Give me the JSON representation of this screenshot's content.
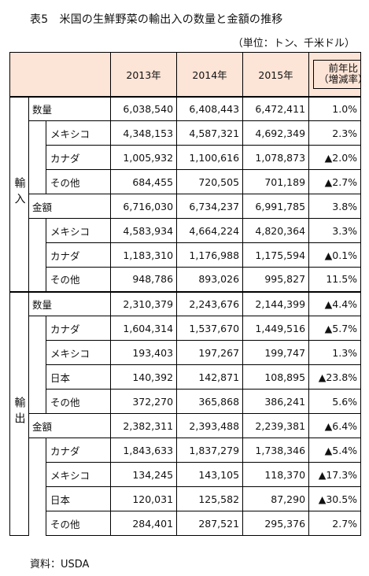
{
  "title": "表5　米国の生鮮野菜の輸出入の数量と金額の推移",
  "unit": "（単位：トン、千米ドル）",
  "headers": {
    "y2013": "2013年",
    "y2014": "2014年",
    "y2015": "2015年",
    "yoy_line1": "前年比",
    "yoy_line2": "（増減率）"
  },
  "import": {
    "label": "輸入",
    "quantity": {
      "label": "数量",
      "v2013": "6,038,540",
      "v2014": "6,408,443",
      "v2015": "6,472,411",
      "yoy": "1.0%",
      "rows": [
        {
          "label": "メキシコ",
          "v2013": "4,348,153",
          "v2014": "4,587,321",
          "v2015": "4,692,349",
          "yoy": "2.3%"
        },
        {
          "label": "カナダ",
          "v2013": "1,005,932",
          "v2014": "1,100,616",
          "v2015": "1,078,873",
          "yoy": "▲2.0%"
        },
        {
          "label": "その他",
          "v2013": "684,455",
          "v2014": "720,505",
          "v2015": "701,189",
          "yoy": "▲2.7%"
        }
      ]
    },
    "value": {
      "label": "金額",
      "v2013": "6,716,030",
      "v2014": "6,734,237",
      "v2015": "6,991,785",
      "yoy": "3.8%",
      "rows": [
        {
          "label": "メキシコ",
          "v2013": "4,583,934",
          "v2014": "4,664,224",
          "v2015": "4,820,364",
          "yoy": "3.3%"
        },
        {
          "label": "カナダ",
          "v2013": "1,183,310",
          "v2014": "1,176,988",
          "v2015": "1,175,594",
          "yoy": "▲0.1%"
        },
        {
          "label": "その他",
          "v2013": "948,786",
          "v2014": "893,026",
          "v2015": "995,827",
          "yoy": "11.5%"
        }
      ]
    }
  },
  "export": {
    "label": "輸出",
    "quantity": {
      "label": "数量",
      "v2013": "2,310,379",
      "v2014": "2,243,676",
      "v2015": "2,144,399",
      "yoy": "▲4.4%",
      "rows": [
        {
          "label": "カナダ",
          "v2013": "1,604,314",
          "v2014": "1,537,670",
          "v2015": "1,449,516",
          "yoy": "▲5.7%"
        },
        {
          "label": "メキシコ",
          "v2013": "193,403",
          "v2014": "197,267",
          "v2015": "199,747",
          "yoy": "1.3%"
        },
        {
          "label": "日本",
          "v2013": "140,392",
          "v2014": "142,871",
          "v2015": "108,895",
          "yoy": "▲23.8%"
        },
        {
          "label": "その他",
          "v2013": "372,270",
          "v2014": "365,868",
          "v2015": "386,241",
          "yoy": "5.6%"
        }
      ]
    },
    "value": {
      "label": "金額",
      "v2013": "2,382,311",
      "v2014": "2,393,488",
      "v2015": "2,239,381",
      "yoy": "▲6.4%",
      "rows": [
        {
          "label": "カナダ",
          "v2013": "1,843,633",
          "v2014": "1,837,279",
          "v2015": "1,738,346",
          "yoy": "▲5.4%"
        },
        {
          "label": "メキシコ",
          "v2013": "134,245",
          "v2014": "143,105",
          "v2015": "118,370",
          "yoy": "▲17.3%"
        },
        {
          "label": "日本",
          "v2013": "120,031",
          "v2014": "125,582",
          "v2015": "87,290",
          "yoy": "▲30.5%"
        },
        {
          "label": "その他",
          "v2013": "284,401",
          "v2014": "287,521",
          "v2015": "295,376",
          "yoy": "2.7%"
        }
      ]
    }
  },
  "source": "資料：USDA",
  "colors": {
    "header_bg": "#fce4d6",
    "border": "#000000",
    "text": "#111111"
  }
}
